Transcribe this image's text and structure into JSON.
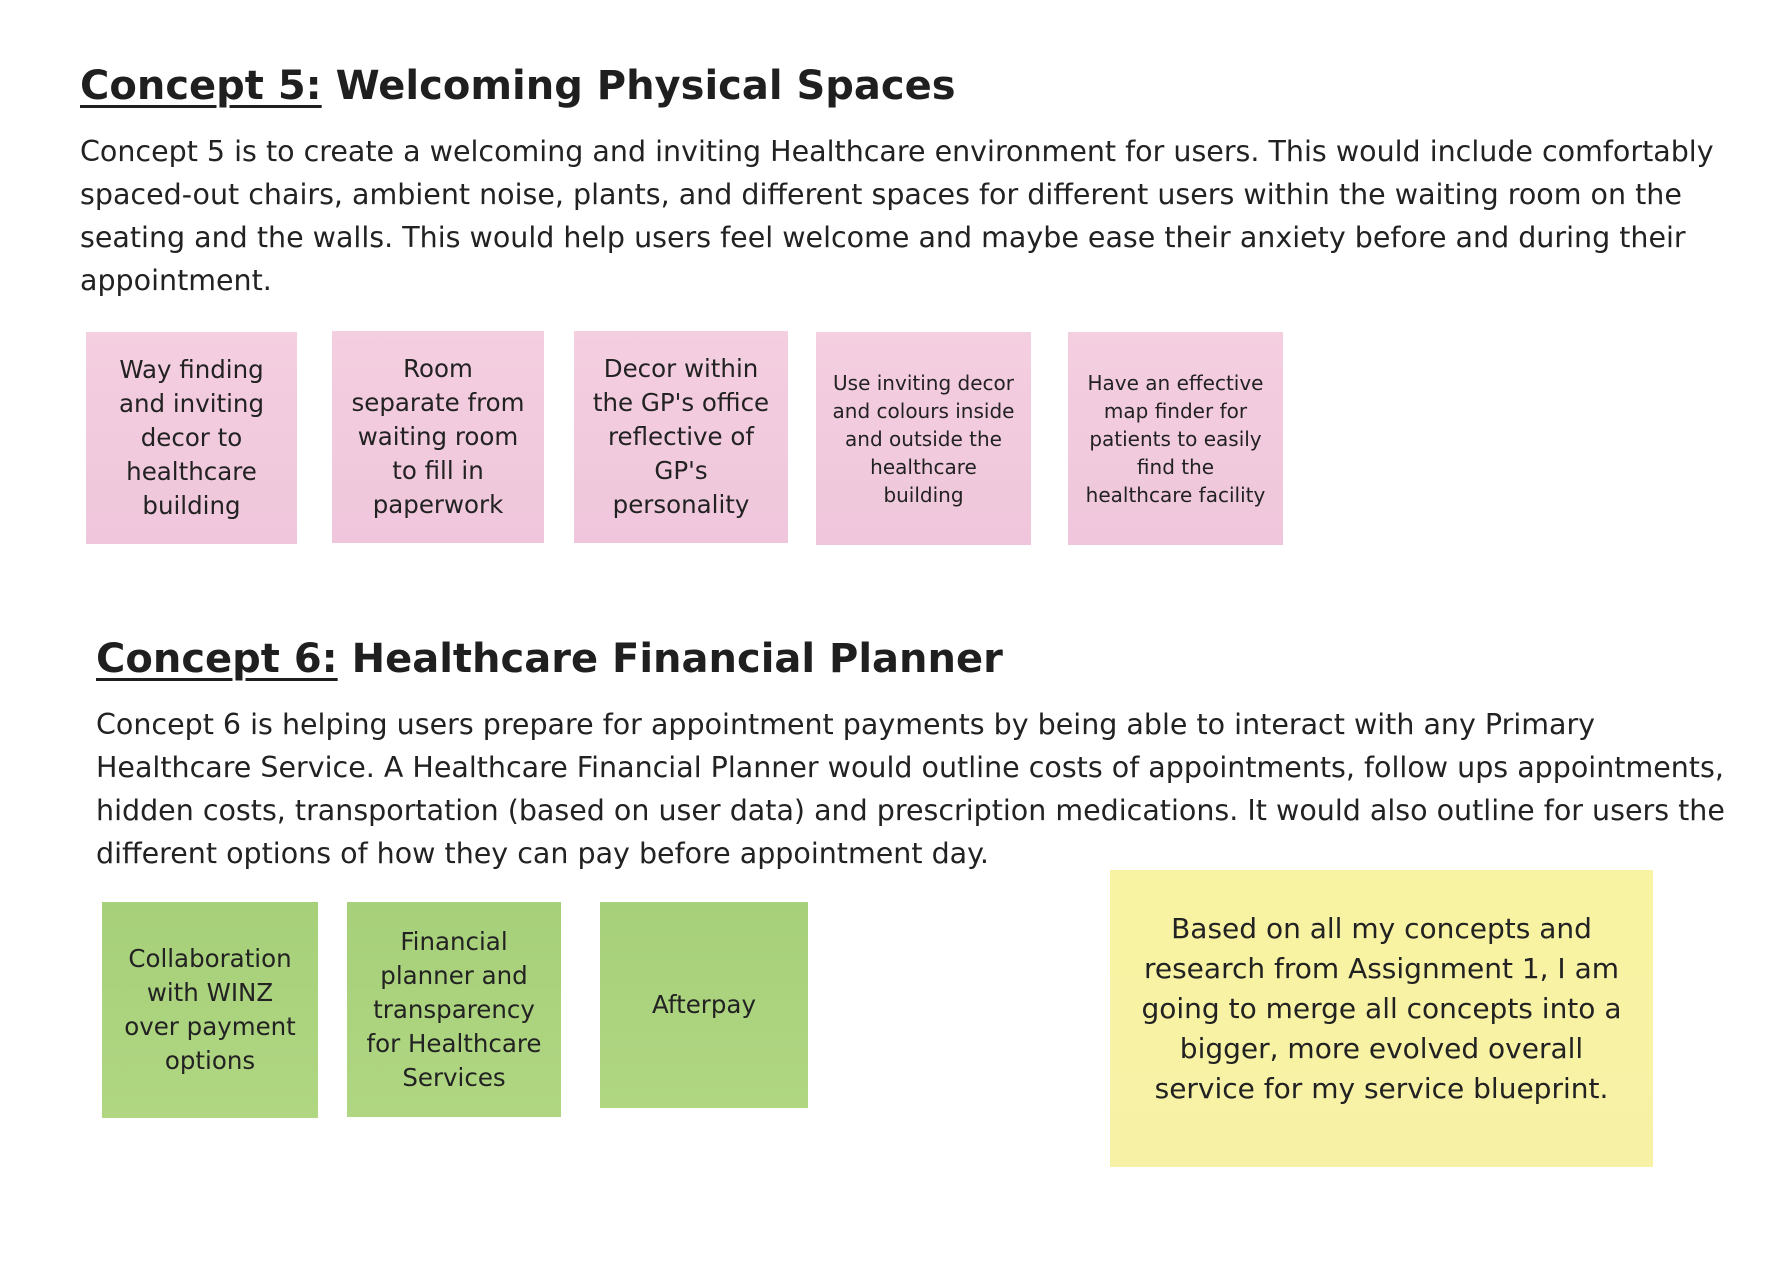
{
  "concept5": {
    "label": "Concept 5:",
    "title": "Welcoming Physical Spaces",
    "description": "Concept 5 is to create a welcoming and inviting Healthcare environment for users. This would include comfortably spaced-out chairs, ambient noise, plants, and different spaces for different users within the waiting room on the seating and the walls. This would help users feel welcome and maybe ease their anxiety before and during their appointment.",
    "notes": [
      "Way finding and inviting decor to healthcare building",
      "Room separate from waiting room to fill in paperwork",
      "Decor within the GP's office reflective of GP's personality",
      "Use inviting decor and colours inside and outside the healthcare building",
      "Have an effective map finder for patients to easily find the healthcare facility"
    ]
  },
  "concept6": {
    "label": "Concept 6:",
    "title": "Healthcare Financial Planner",
    "description": "Concept 6 is helping users prepare for appointment payments by being able to interact with any Primary Healthcare Service. A Healthcare Financial Planner would outline costs of appointments, follow ups appointments, hidden costs, transportation (based on user data) and prescription medications.  It would also outline for users the different options of how they can pay before appointment day.",
    "notes": [
      "Collaboration with WINZ over payment options",
      "Financial planner and transparency for Healthcare Services",
      "Afterpay"
    ]
  },
  "summary_note": "Based on all my concepts and research  from Assignment 1, I am going to merge all concepts into a bigger, more evolved overall service for my service blueprint.",
  "colors": {
    "pink_note": "#f2cbde",
    "green_note": "#aad37d",
    "yellow_note": "#f8f3a3"
  }
}
